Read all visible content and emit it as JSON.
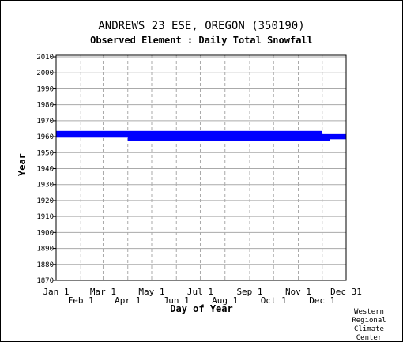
{
  "chart_data": {
    "type": "scatter",
    "title": "ANDREWS 23 ESE, OREGON   (350190)",
    "subtitle": "Observed Element : Daily Total Snowfall",
    "xlabel": "Day of Year",
    "ylabel": "Year",
    "ylim": [
      1870,
      2011
    ],
    "yticks": [
      1870,
      1880,
      1890,
      1900,
      1910,
      1920,
      1930,
      1940,
      1950,
      1960,
      1970,
      1980,
      1990,
      2000,
      2010
    ],
    "xlim": [
      1,
      365
    ],
    "xticks_top": [
      {
        "label": "Jan 1",
        "day": 1
      },
      {
        "label": "Mar 1",
        "day": 60
      },
      {
        "label": "May 1",
        "day": 121
      },
      {
        "label": "Jul 1",
        "day": 182
      },
      {
        "label": "Sep 1",
        "day": 244
      },
      {
        "label": "Nov 1",
        "day": 305
      },
      {
        "label": "Dec 31",
        "day": 365
      }
    ],
    "xticks_bottom": [
      {
        "label": "Feb 1",
        "day": 32
      },
      {
        "label": "Apr 1",
        "day": 91
      },
      {
        "label": "Jun 1",
        "day": 152
      },
      {
        "label": "Aug 1",
        "day": 213
      },
      {
        "label": "Oct 1",
        "day": 274
      },
      {
        "label": "Dec 1",
        "day": 335
      }
    ],
    "grid": true,
    "series_color": "#0000ff",
    "coverage": [
      {
        "year": 1963,
        "start_day": 1,
        "end_day": 335
      },
      {
        "year": 1962,
        "start_day": 1,
        "end_day": 335
      },
      {
        "year": 1961,
        "start_day": 1,
        "end_day": 365
      },
      {
        "year": 1960,
        "start_day": 1,
        "end_day": 365
      },
      {
        "year": 1959,
        "start_day": 91,
        "end_day": 365
      },
      {
        "year": 1958,
        "start_day": 91,
        "end_day": 345
      }
    ]
  },
  "credit_lines": [
    "Western",
    "Regional",
    "Climate",
    "Center"
  ]
}
